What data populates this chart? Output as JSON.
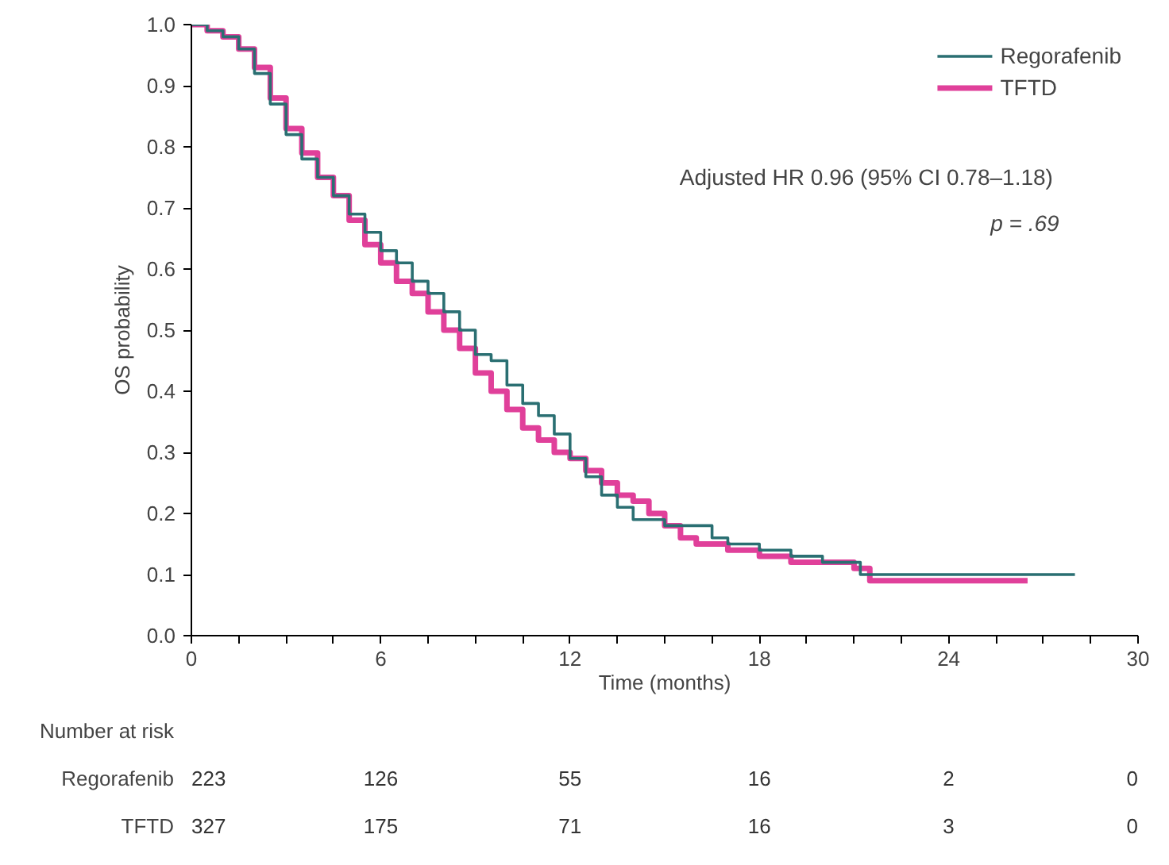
{
  "chart_data": {
    "type": "step",
    "xlabel": "Time (months)",
    "ylabel": "OS probability",
    "xlim": [
      0,
      30
    ],
    "ylim": [
      0,
      1
    ],
    "xticks": [
      0,
      {
        "value": 1.5,
        "label": null
      },
      {
        "value": 3,
        "label": null
      },
      {
        "value": 4.5,
        "label": null
      },
      6,
      {
        "value": 7.5,
        "label": null
      },
      {
        "value": 9,
        "label": null
      },
      {
        "value": 10.5,
        "label": null
      },
      12,
      {
        "value": 13.5,
        "label": null
      },
      {
        "value": 15,
        "label": null
      },
      {
        "value": 16.5,
        "label": null
      },
      18,
      {
        "value": 19.5,
        "label": null
      },
      {
        "value": 21,
        "label": null
      },
      {
        "value": 22.5,
        "label": null
      },
      24,
      {
        "value": 25.5,
        "label": null
      },
      {
        "value": 27,
        "label": null
      },
      {
        "value": 28.5,
        "label": null
      },
      30
    ],
    "yticks": [
      {
        "value": 0,
        "label": "0.0"
      },
      {
        "value": 0.1,
        "label": "0.1"
      },
      {
        "value": 0.2,
        "label": "0.2"
      },
      {
        "value": 0.3,
        "label": "0.3"
      },
      {
        "value": 0.4,
        "label": "0.4"
      },
      {
        "value": 0.5,
        "label": "0.5"
      },
      {
        "value": 0.6,
        "label": "0.6"
      },
      {
        "value": 0.7,
        "label": "0.7"
      },
      {
        "value": 0.8,
        "label": "0.8"
      },
      {
        "value": 0.9,
        "label": "0.9"
      },
      {
        "value": 1,
        "label": "1.0"
      }
    ],
    "grid": false,
    "legend": "top right",
    "marker": "none",
    "line_style": "solid",
    "series": [
      {
        "name": "Regorafenib",
        "color": "#2a6f72",
        "x": [
          0,
          0.5,
          1,
          1.5,
          2,
          2.5,
          3,
          3.5,
          4,
          4.5,
          5,
          5.5,
          6,
          6.5,
          7,
          7.5,
          8,
          8.5,
          9,
          9.5,
          10,
          10.5,
          11,
          11.5,
          12,
          12.5,
          13,
          13.5,
          14,
          15,
          16,
          16.5,
          17,
          18,
          19,
          20,
          21,
          21.2,
          28
        ],
        "values": [
          1,
          0.99,
          0.98,
          0.96,
          0.92,
          0.87,
          0.82,
          0.78,
          0.75,
          0.72,
          0.69,
          0.66,
          0.63,
          0.61,
          0.58,
          0.56,
          0.53,
          0.5,
          0.46,
          0.45,
          0.41,
          0.38,
          0.36,
          0.33,
          0.29,
          0.26,
          0.23,
          0.21,
          0.19,
          0.18,
          0.18,
          0.16,
          0.15,
          0.14,
          0.13,
          0.12,
          0.12,
          0.1,
          0.1
        ]
      },
      {
        "name": "TFTD",
        "color": "#e0409a",
        "x": [
          0,
          0.5,
          1,
          1.5,
          2,
          2.5,
          3,
          3.5,
          4,
          4.5,
          5,
          5.5,
          6,
          6.5,
          7,
          7.5,
          8,
          8.5,
          9,
          9.5,
          10,
          10.5,
          11,
          11.5,
          12,
          12.5,
          13,
          13.5,
          14,
          14.5,
          15,
          15.5,
          16,
          17,
          18,
          19,
          20,
          21,
          21.5,
          26.5
        ],
        "values": [
          1,
          0.99,
          0.98,
          0.96,
          0.93,
          0.88,
          0.83,
          0.79,
          0.75,
          0.72,
          0.68,
          0.64,
          0.61,
          0.58,
          0.56,
          0.53,
          0.5,
          0.47,
          0.43,
          0.4,
          0.37,
          0.34,
          0.32,
          0.3,
          0.29,
          0.27,
          0.25,
          0.23,
          0.22,
          0.2,
          0.18,
          0.16,
          0.15,
          0.14,
          0.13,
          0.12,
          0.12,
          0.11,
          0.09,
          0.09
        ]
      }
    ],
    "annotations": [
      "Adjusted  HR 0.96 (95% CI 0.78–1.18)",
      "p = .69",
      "Number at risk",
      "Regorafenib",
      "223",
      "126",
      "55",
      "16",
      "2",
      "0",
      "TFTD",
      "327",
      "175",
      "71",
      "16",
      "3",
      "0"
    ]
  }
}
